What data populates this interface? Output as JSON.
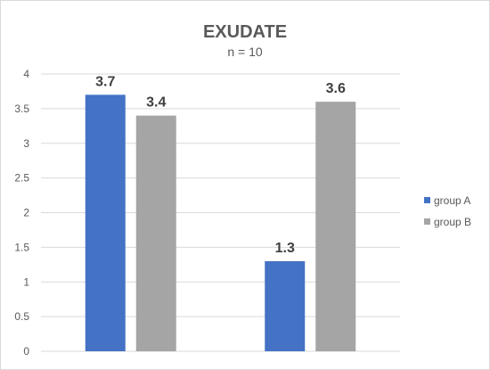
{
  "chart_data": {
    "type": "bar",
    "title": "EXUDATE",
    "subtitle": "n = 10",
    "categories": [
      "",
      ""
    ],
    "series": [
      {
        "name": "group A",
        "values": [
          3.7,
          1.3
        ],
        "color": "#4472c4"
      },
      {
        "name": "group B",
        "values": [
          3.4,
          3.6
        ],
        "color": "#a5a5a5"
      }
    ],
    "ylim": [
      0,
      4
    ],
    "yticks": [
      0,
      0.5,
      1,
      1.5,
      2,
      2.5,
      3,
      3.5,
      4
    ],
    "ytick_labels": [
      "0",
      "0.5",
      "1",
      "1.5",
      "2",
      "2.5",
      "3",
      "3.5",
      "4"
    ],
    "xlabel": "",
    "ylabel": "",
    "grid": true,
    "legend_position": "right",
    "data_labels": [
      "3.7",
      "1.3",
      "3.4",
      "3.6"
    ]
  }
}
